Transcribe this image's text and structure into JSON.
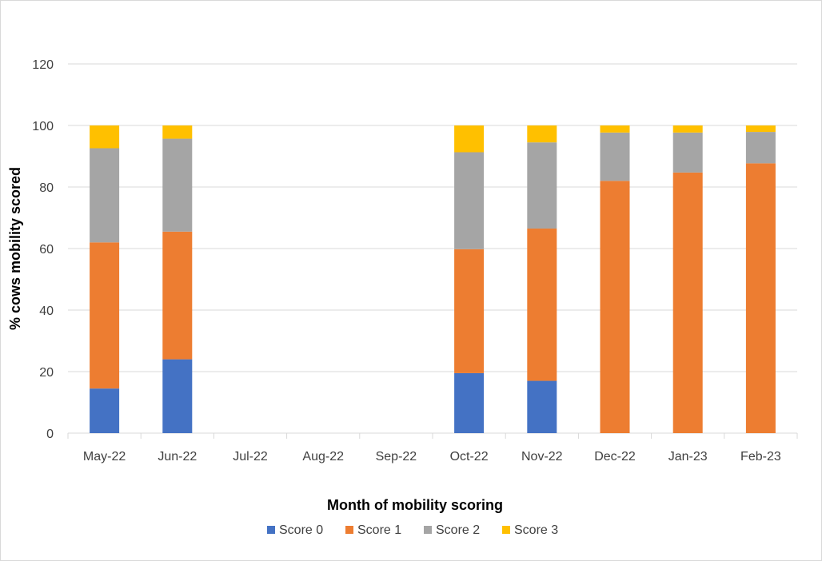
{
  "chart_data": {
    "type": "bar",
    "stacked": true,
    "title": "",
    "xlabel": "Month of mobility scoring",
    "ylabel": "% cows mobility scored",
    "ylim": [
      0,
      120
    ],
    "yticks": [
      0,
      20,
      40,
      60,
      80,
      100,
      120
    ],
    "grid": true,
    "legend_position": "bottom",
    "categories": [
      "May-22",
      "Jun-22",
      "Jul-22",
      "Aug-22",
      "Sep-22",
      "Oct-22",
      "Nov-22",
      "Dec-22",
      "Jan-23",
      "Feb-23"
    ],
    "series": [
      {
        "name": "Score 0",
        "color": "#4472C4",
        "values": [
          14.5,
          24,
          0,
          0,
          0,
          19.5,
          17,
          0,
          0,
          0
        ]
      },
      {
        "name": "Score 1",
        "color": "#ED7D31",
        "values": [
          47.5,
          41.5,
          0,
          0,
          0,
          40.3,
          49.5,
          82,
          84.7,
          87.7
        ]
      },
      {
        "name": "Score 2",
        "color": "#A5A5A5",
        "values": [
          30.6,
          30.2,
          0,
          0,
          0,
          31.5,
          28,
          15.7,
          13,
          10.2
        ]
      },
      {
        "name": "Score 3",
        "color": "#FFC000",
        "values": [
          7.4,
          4.3,
          0,
          0,
          0,
          8.7,
          5.5,
          2.3,
          2.3,
          2.1
        ]
      }
    ]
  }
}
